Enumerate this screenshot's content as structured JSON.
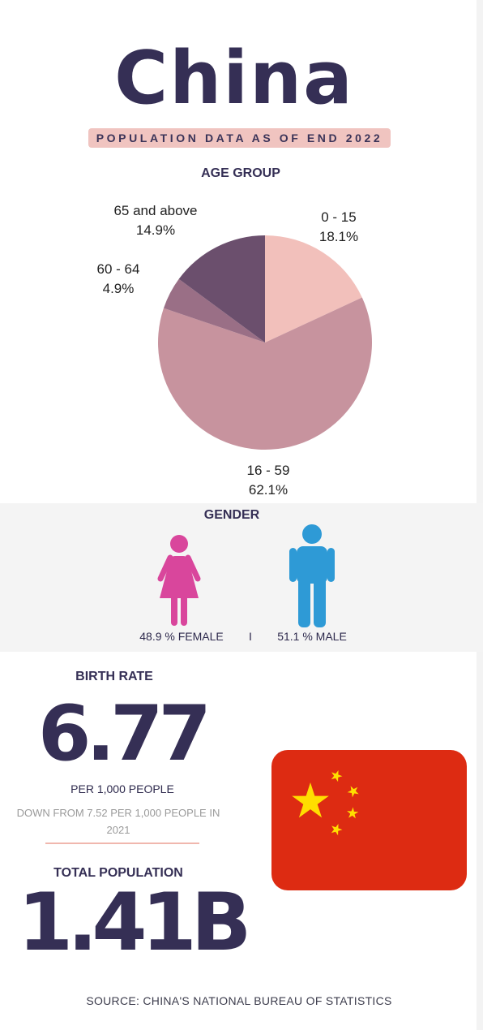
{
  "header": {
    "title": "China",
    "subtitle": "POPULATION DATA AS OF END 2022"
  },
  "age_section": {
    "heading": "AGE GROUP"
  },
  "chart_data": {
    "type": "pie",
    "title": "AGE GROUP",
    "slices": [
      {
        "label": "0 - 15",
        "value": 18.1,
        "value_label": "18.1%",
        "color": "#f2c0bb"
      },
      {
        "label": "16 - 59",
        "value": 62.1,
        "value_label": "62.1%",
        "color": "#c7939e"
      },
      {
        "label": "60 - 64",
        "value": 4.9,
        "value_label": "4.9%",
        "color": "#9a6f86"
      },
      {
        "label": "65 and above",
        "value": 14.9,
        "value_label": "14.9%",
        "color": "#6b4f6d"
      }
    ]
  },
  "gender": {
    "heading": "GENDER",
    "female_label": "48.9 %  FEMALE",
    "separator": "I",
    "male_label": "51.1 % MALE",
    "female_color": "#d9469c",
    "male_color": "#2e9ad6",
    "female_icon": "female-person-icon",
    "male_icon": "male-person-icon"
  },
  "birth_rate": {
    "heading": "BIRTH RATE",
    "value": "6.77",
    "unit": "PER 1,000 PEOPLE",
    "note": "DOWN FROM 7.52 PER 1,000 PEOPLE IN 2021"
  },
  "total_population": {
    "heading": "TOTAL POPULATION",
    "value": "1.41B"
  },
  "flag": {
    "icon": "china-flag-icon",
    "red": "#dd2b12",
    "yellow": "#ffde00"
  },
  "footer": {
    "source": "SOURCE: CHINA'S NATIONAL BUREAU OF STATISTICS"
  }
}
